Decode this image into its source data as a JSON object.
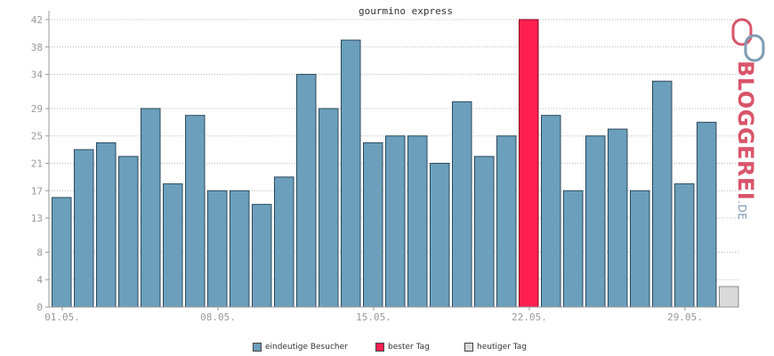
{
  "chart_data": {
    "type": "bar",
    "title": "gourmino express",
    "ylim": [
      0,
      42
    ],
    "yticks": [
      "0",
      "4",
      "8",
      "13",
      "17",
      "21",
      "25",
      "29",
      "34",
      "38",
      "42"
    ],
    "xtick_labels": [
      {
        "day_index": 0,
        "label": "01.05."
      },
      {
        "day_index": 7,
        "label": "08.05."
      },
      {
        "day_index": 14,
        "label": "15.05."
      },
      {
        "day_index": 21,
        "label": "22.05."
      },
      {
        "day_index": 28,
        "label": "29.05."
      }
    ],
    "series": [
      {
        "name": "eindeutige Besucher",
        "values": [
          16,
          23,
          24,
          22,
          29,
          18,
          28,
          17,
          17,
          15,
          19,
          34,
          29,
          39,
          24,
          25,
          25,
          21,
          30,
          22,
          25,
          42,
          28,
          17,
          25,
          26,
          17,
          33,
          18,
          27,
          3
        ],
        "best_index": 21,
        "today_index": 30
      }
    ],
    "colors": {
      "bar": "#6b9fbb",
      "best": "#ff1f4f",
      "today": "#d9d9d9",
      "grid": "#bbbbbb",
      "axis": "#999999"
    },
    "legend_position": "bottom-center",
    "grid": true
  },
  "legend": [
    {
      "label": "eindeutige Besucher",
      "color": "#6b9fbb"
    },
    {
      "label": "bester Tag",
      "color": "#ff1f4f"
    },
    {
      "label": "heutiger Tag",
      "color": "#d9d9d9"
    }
  ],
  "logo": {
    "text": "BLOGGEREI",
    "suffix": ".DE",
    "color": "#d9546a"
  }
}
